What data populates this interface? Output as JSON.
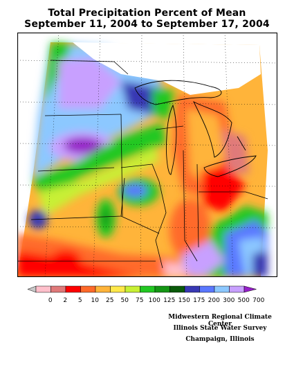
{
  "title": {
    "line1": "Total Precipitation Percent of Mean",
    "line2": "September 11, 2004 to September 17, 2004"
  },
  "legend": {
    "labels": [
      "0",
      "2",
      "5",
      "10",
      "25",
      "50",
      "75",
      "100",
      "125",
      "150",
      "175",
      "200",
      "300",
      "500",
      "700"
    ],
    "colors": [
      "#ffc0cb",
      "#e07a7a",
      "#ff0000",
      "#ff6a2a",
      "#ffb43a",
      "#ffe84a",
      "#c8f034",
      "#22c822",
      "#149614",
      "#0a5a0a",
      "#3838b4",
      "#5a78ff",
      "#8cc8ff",
      "#c8a0ff",
      "#9620c8"
    ]
  },
  "credits": {
    "line1": "Midwestern Regional Climate Center",
    "line2": "Illinois State Water Survey",
    "line3": "Champaign, Illinois"
  }
}
